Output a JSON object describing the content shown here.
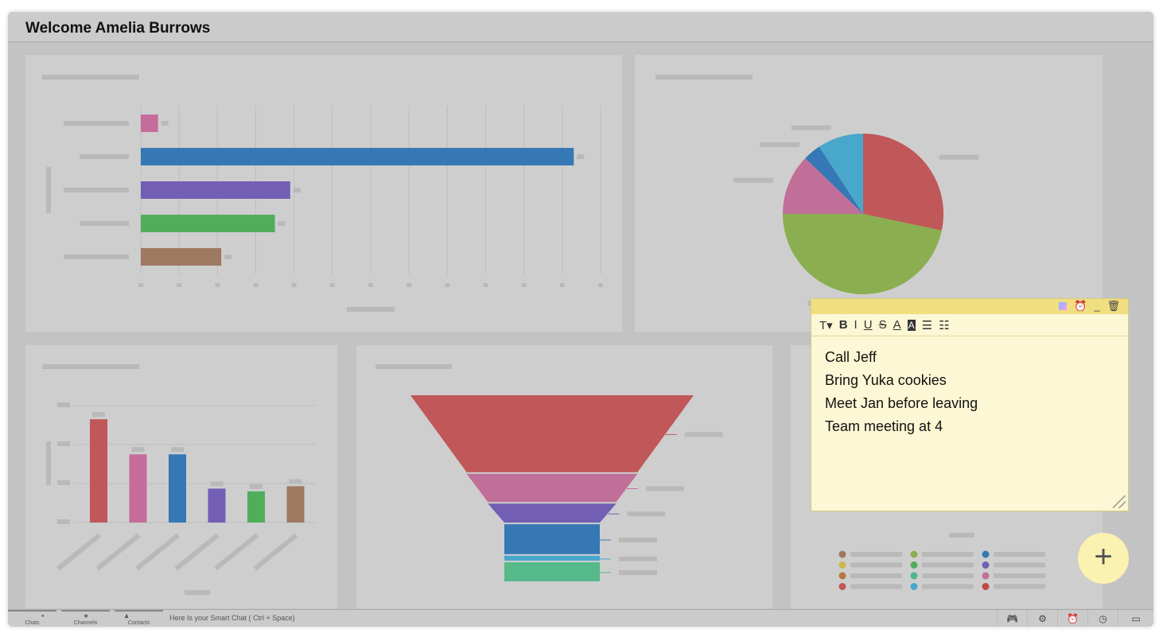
{
  "header": {
    "title": "Welcome Amelia Burrows"
  },
  "chart_data": [
    {
      "type": "bar",
      "orientation": "horizontal",
      "values": [
        4.5,
        113,
        39,
        35,
        21
      ],
      "colors": [
        "#c66c9c",
        "#3578b5",
        "#725fb5",
        "#52ad5b",
        "#9e7860"
      ],
      "xlim": [
        0,
        120
      ]
    },
    {
      "type": "pie",
      "values": [
        28.3,
        46.7,
        12.2,
        3.6,
        9.2
      ],
      "colors": [
        "#c05758",
        "#8aae50",
        "#c06f98",
        "#3578b5",
        "#4aa7cc"
      ]
    },
    {
      "type": "bar",
      "orientation": "vertical",
      "values": [
        265,
        175,
        175,
        87,
        80,
        93
      ],
      "colors": [
        "#c05758",
        "#c66c9c",
        "#3578b5",
        "#725fb5",
        "#52ad5b",
        "#9e7860"
      ],
      "ylim": [
        0,
        300
      ]
    },
    {
      "type": "funnel",
      "values": [
        95,
        36,
        25,
        38,
        8,
        25
      ],
      "colors": [
        "#c05758",
        "#c06f98",
        "#725fb5",
        "#3578b5",
        "#4aa7cc",
        "#55b98a"
      ]
    }
  ],
  "legend_colors": [
    "#9e7860",
    "#c8b84a",
    "#b87840",
    "#c05758",
    "#8aae50",
    "#52ad5b",
    "#4fb58d",
    "#4aa7cc",
    "#3578b5",
    "#725fb5",
    "#c06f98",
    "#c04848"
  ],
  "note": {
    "lines": [
      "Call Jeff",
      "Bring Yuka cookies",
      "Meet Jan before leaving",
      "Team meeting at 4"
    ],
    "toolbar": [
      "T▾",
      "B",
      "I",
      "U",
      "S",
      "A",
      "A",
      "☰",
      "☷"
    ]
  },
  "fab": {
    "label": "+"
  },
  "bottom": {
    "tabs": [
      "Chats",
      "Channels",
      "Contacts"
    ],
    "tab_icons": [
      "●",
      "❖",
      "♟"
    ],
    "smart_chat": "Here Is your Smart Chat ( Ctrl + Space)",
    "icons": [
      "🎮",
      "⚙",
      "⏰",
      "◷",
      "▭"
    ]
  }
}
